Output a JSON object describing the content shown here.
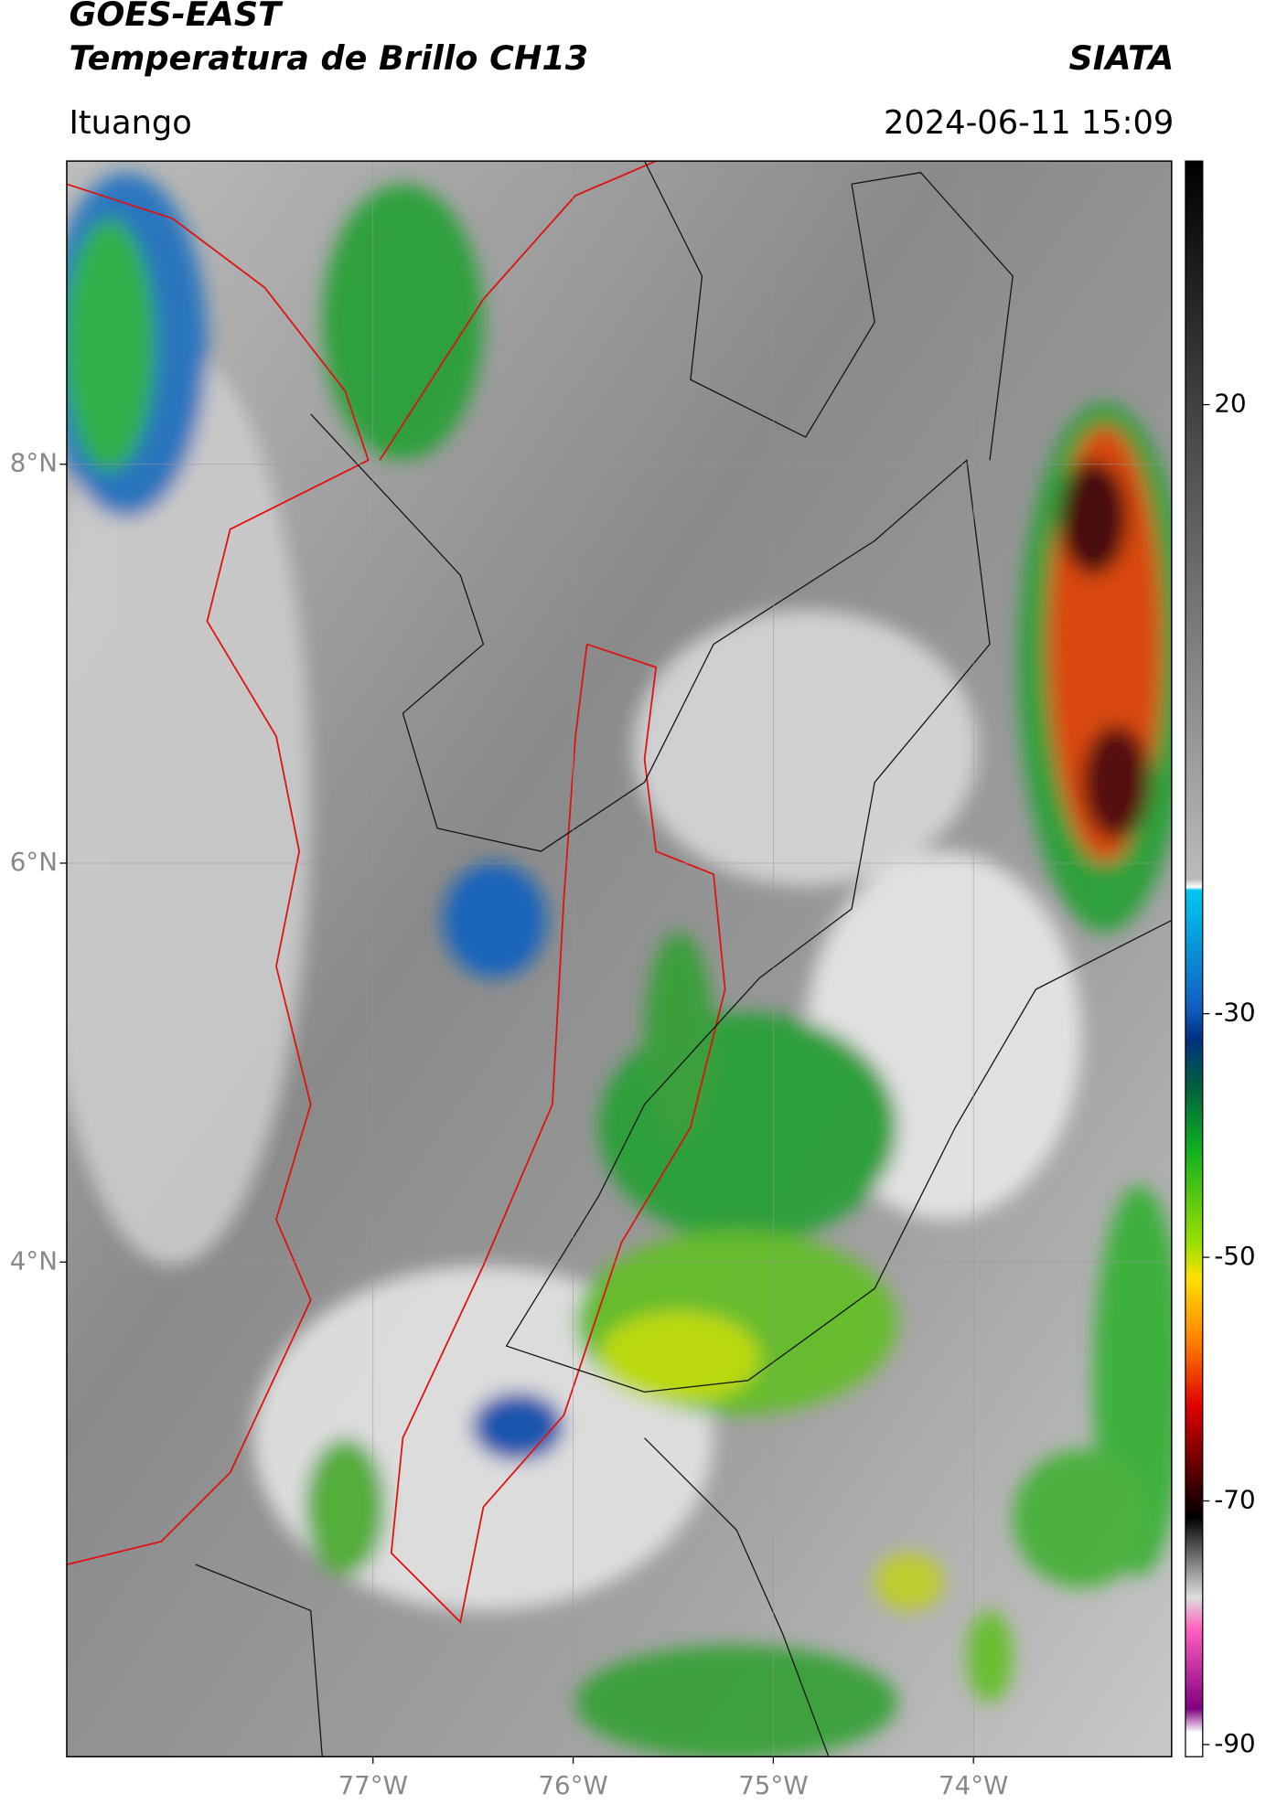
{
  "header": {
    "title_line1": "GOES-EAST",
    "title_line2": "Temperatura de Brillo CH13",
    "agency": "SIATA",
    "location": "Ituango",
    "timestamp": "2024-06-11 15:09"
  },
  "map": {
    "xlim": [
      -78.53,
      -73.01
    ],
    "ylim": [
      1.52,
      9.52
    ],
    "xticks": [
      {
        "value": -77,
        "label": "77°W"
      },
      {
        "value": -76,
        "label": "76°W"
      },
      {
        "value": -75,
        "label": "75°W"
      },
      {
        "value": -74,
        "label": "74°W"
      }
    ],
    "yticks": [
      {
        "value": 8,
        "label": "8°N"
      },
      {
        "value": 6,
        "label": "6°N"
      },
      {
        "value": 4,
        "label": "4°N"
      }
    ],
    "grid": true
  },
  "colorbar": {
    "lim": [
      -91,
      40
    ],
    "ticks": [
      20,
      -30,
      -50,
      -70,
      -90
    ]
  }
}
